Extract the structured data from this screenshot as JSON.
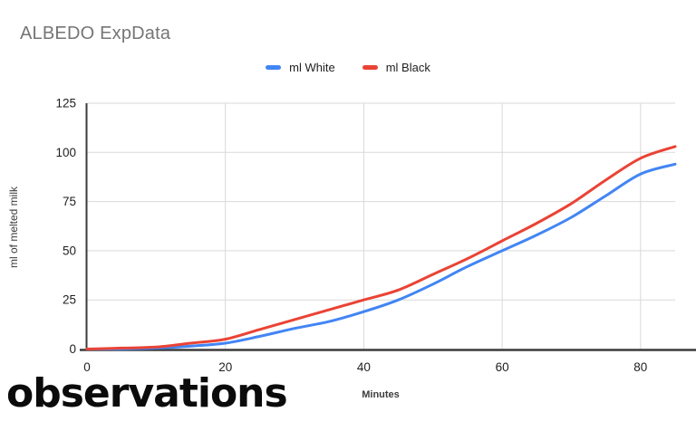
{
  "chart_data": {
    "type": "line",
    "title": "ALBEDO ExpData",
    "xlabel": "Minutes",
    "ylabel": "ml of melted milk",
    "x": [
      0,
      5,
      10,
      15,
      20,
      25,
      30,
      35,
      40,
      45,
      50,
      55,
      60,
      65,
      70,
      75,
      80,
      85
    ],
    "series": [
      {
        "name": "ml White",
        "color": "#4285f4",
        "values": [
          0,
          0,
          0.5,
          1.5,
          3,
          6.5,
          10.5,
          14,
          19,
          25,
          33,
          42,
          50,
          58,
          67,
          78,
          89,
          94
        ]
      },
      {
        "name": "ml Black",
        "color": "#ea4335",
        "values": [
          0,
          0.5,
          1,
          3,
          5,
          10,
          15,
          20,
          25,
          30,
          38,
          46,
          55,
          64,
          74,
          86,
          97,
          103
        ]
      }
    ],
    "xlim": [
      0,
      85
    ],
    "ylim": [
      0,
      125
    ],
    "x_ticks": [
      0,
      20,
      40,
      60,
      80
    ],
    "y_ticks": [
      0,
      25,
      50,
      75,
      100,
      125
    ],
    "grid": true,
    "legend_position": "top",
    "colors": {
      "title": "#757575",
      "grid": "#d9d9d9",
      "axis": "#3b3b3b",
      "tick_text": "#1f1f1f"
    }
  },
  "footer": {
    "heading": "observations"
  }
}
